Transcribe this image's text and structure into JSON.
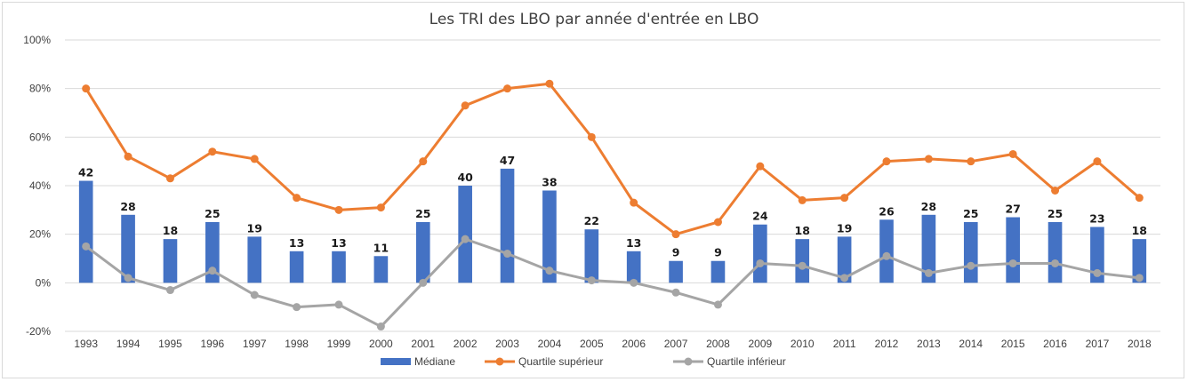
{
  "chart_data": {
    "type": "bar",
    "title": "Les TRI des LBO par année d'entrée en LBO",
    "categories": [
      "1993",
      "1994",
      "1995",
      "1996",
      "1997",
      "1998",
      "1999",
      "2000",
      "2001",
      "2002",
      "2003",
      "2004",
      "2005",
      "2006",
      "2007",
      "2008",
      "2009",
      "2010",
      "2011",
      "2012",
      "2013",
      "2014",
      "2015",
      "2016",
      "2017",
      "2018"
    ],
    "ylim": [
      -20,
      100
    ],
    "yticks": [
      -20,
      0,
      20,
      40,
      60,
      80,
      100
    ],
    "ytick_labels": [
      "-20%",
      "0%",
      "20%",
      "40%",
      "60%",
      "80%",
      "100%"
    ],
    "grid": true,
    "legend_position": "bottom",
    "series": [
      {
        "name": "Médiane",
        "type": "bar",
        "color": "#4472C4",
        "values": [
          42,
          28,
          18,
          25,
          19,
          13,
          13,
          11,
          25,
          40,
          47,
          38,
          22,
          13,
          9,
          9,
          24,
          18,
          19,
          26,
          28,
          25,
          27,
          25,
          23,
          18
        ],
        "labels": [
          "42",
          "28",
          "18",
          "25",
          "19",
          "13",
          "13",
          "11",
          "25",
          "40",
          "47",
          "38",
          "22",
          "13",
          "9",
          "9",
          "24",
          "18",
          "19",
          "26",
          "28",
          "25",
          "27",
          "25",
          "23",
          "18"
        ]
      },
      {
        "name": "Quartile supérieur",
        "type": "line",
        "color": "#ED7D31",
        "values": [
          80,
          52,
          43,
          54,
          51,
          35,
          30,
          31,
          50,
          73,
          80,
          82,
          60,
          33,
          20,
          25,
          48,
          34,
          35,
          50,
          51,
          50,
          53,
          38,
          50,
          35
        ]
      },
      {
        "name": "Quartile inférieur",
        "type": "line",
        "color": "#A5A5A5",
        "values": [
          15,
          2,
          -3,
          5,
          -5,
          -10,
          -9,
          -18,
          0,
          18,
          12,
          5,
          1,
          0,
          -4,
          -9,
          8,
          7,
          2,
          11,
          4,
          7,
          8,
          8,
          4,
          2
        ]
      }
    ]
  }
}
